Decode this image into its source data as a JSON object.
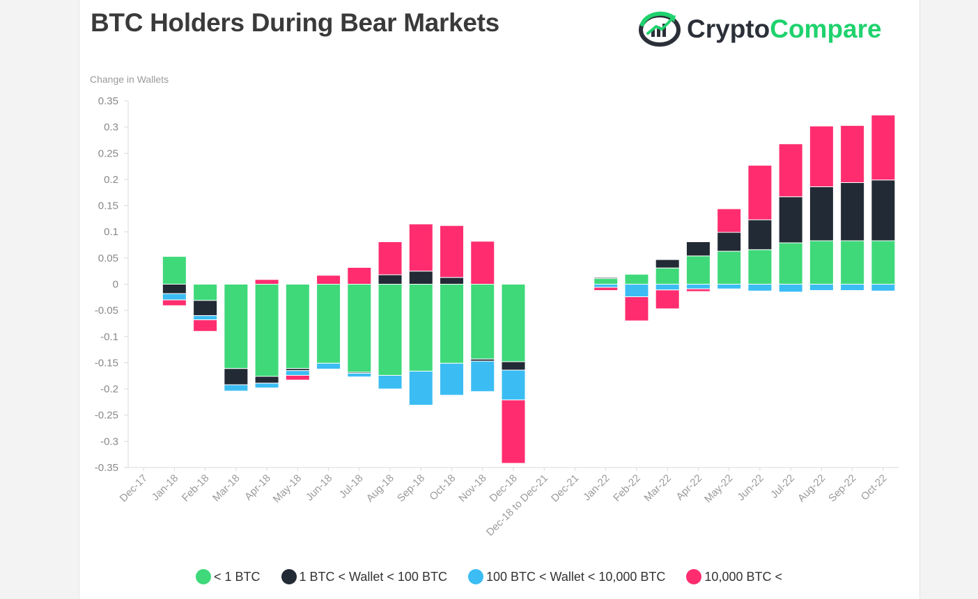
{
  "header": {
    "title": "BTC Holders During Bear Markets",
    "brand_part1": "Crypto",
    "brand_part2": "Compare"
  },
  "colors": {
    "green": "#3fd97a",
    "navy": "#222a35",
    "blue": "#3bbdf3",
    "pink": "#ff2d6f",
    "brand_green": "#1fd26d",
    "brand_navy": "#2b2f38"
  },
  "chart_data": {
    "type": "bar",
    "stacked": true,
    "title": "BTC Holders During Bear Markets",
    "ylabel": "Change in Wallets",
    "xlabel": "",
    "ylim": [
      -0.35,
      0.35
    ],
    "yticks": [
      "0.35",
      "0.3",
      "0.25",
      "0.2",
      "0.15",
      "0.1",
      "0.05",
      "0",
      "-0.05",
      "-0.1",
      "-0.15",
      "-0.2",
      "-0.25",
      "-0.3",
      "-0.35"
    ],
    "categories": [
      "Dec-17",
      "Jan-18",
      "Feb-18",
      "Mar-18",
      "Apr-18",
      "May-18",
      "Jun-18",
      "Jul-18",
      "Aug-18",
      "Sep-18",
      "Oct-18",
      "Nov-18",
      "Dec-18",
      "Dec-18 to Dec-21",
      "Dec-21",
      "Jan-22",
      "Feb-22",
      "Mar-22",
      "Apr-22",
      "May-22",
      "Jun-22",
      "Jul-22",
      "Aug-22",
      "Sep-22",
      "Oct-22"
    ],
    "grid": false,
    "legend_position": "bottom",
    "series": [
      {
        "name": "< 1 BTC",
        "color": "#3fd97a",
        "values": [
          0,
          0.053,
          -0.031,
          -0.161,
          -0.176,
          -0.161,
          -0.151,
          -0.168,
          -0.174,
          -0.166,
          -0.151,
          -0.143,
          -0.148,
          0,
          0,
          0.011,
          0.019,
          0.031,
          0.054,
          0.063,
          0.066,
          0.079,
          0.083,
          0.083,
          0.083
        ]
      },
      {
        "name": "1 BTC < Wallet < 100 BTC",
        "color": "#222a35",
        "values": [
          0,
          -0.018,
          -0.029,
          -0.031,
          -0.013,
          -0.004,
          0,
          -0.002,
          0.018,
          0.025,
          0.013,
          -0.004,
          -0.016,
          0,
          0,
          0.002,
          0,
          0.016,
          0.027,
          0.036,
          0.057,
          0.088,
          0.103,
          0.111,
          0.116
        ]
      },
      {
        "name": "100 BTC < Wallet < 10,000 BTC",
        "color": "#3bbdf3",
        "values": [
          0,
          -0.012,
          -0.008,
          -0.012,
          -0.009,
          -0.009,
          -0.011,
          -0.007,
          -0.026,
          -0.065,
          -0.061,
          -0.058,
          -0.057,
          0,
          0,
          -0.006,
          -0.024,
          -0.011,
          -0.009,
          -0.009,
          -0.013,
          -0.015,
          -0.012,
          -0.012,
          -0.013
        ]
      },
      {
        "name": "10,000 BTC <",
        "color": "#ff2d6f",
        "values": [
          0,
          -0.011,
          -0.022,
          0,
          0.009,
          -0.009,
          0.017,
          0.032,
          0.063,
          0.09,
          0.099,
          0.082,
          -0.121,
          0,
          0,
          -0.006,
          -0.046,
          -0.036,
          -0.005,
          0.045,
          0.104,
          0.101,
          0.116,
          0.109,
          0.124
        ]
      }
    ]
  }
}
